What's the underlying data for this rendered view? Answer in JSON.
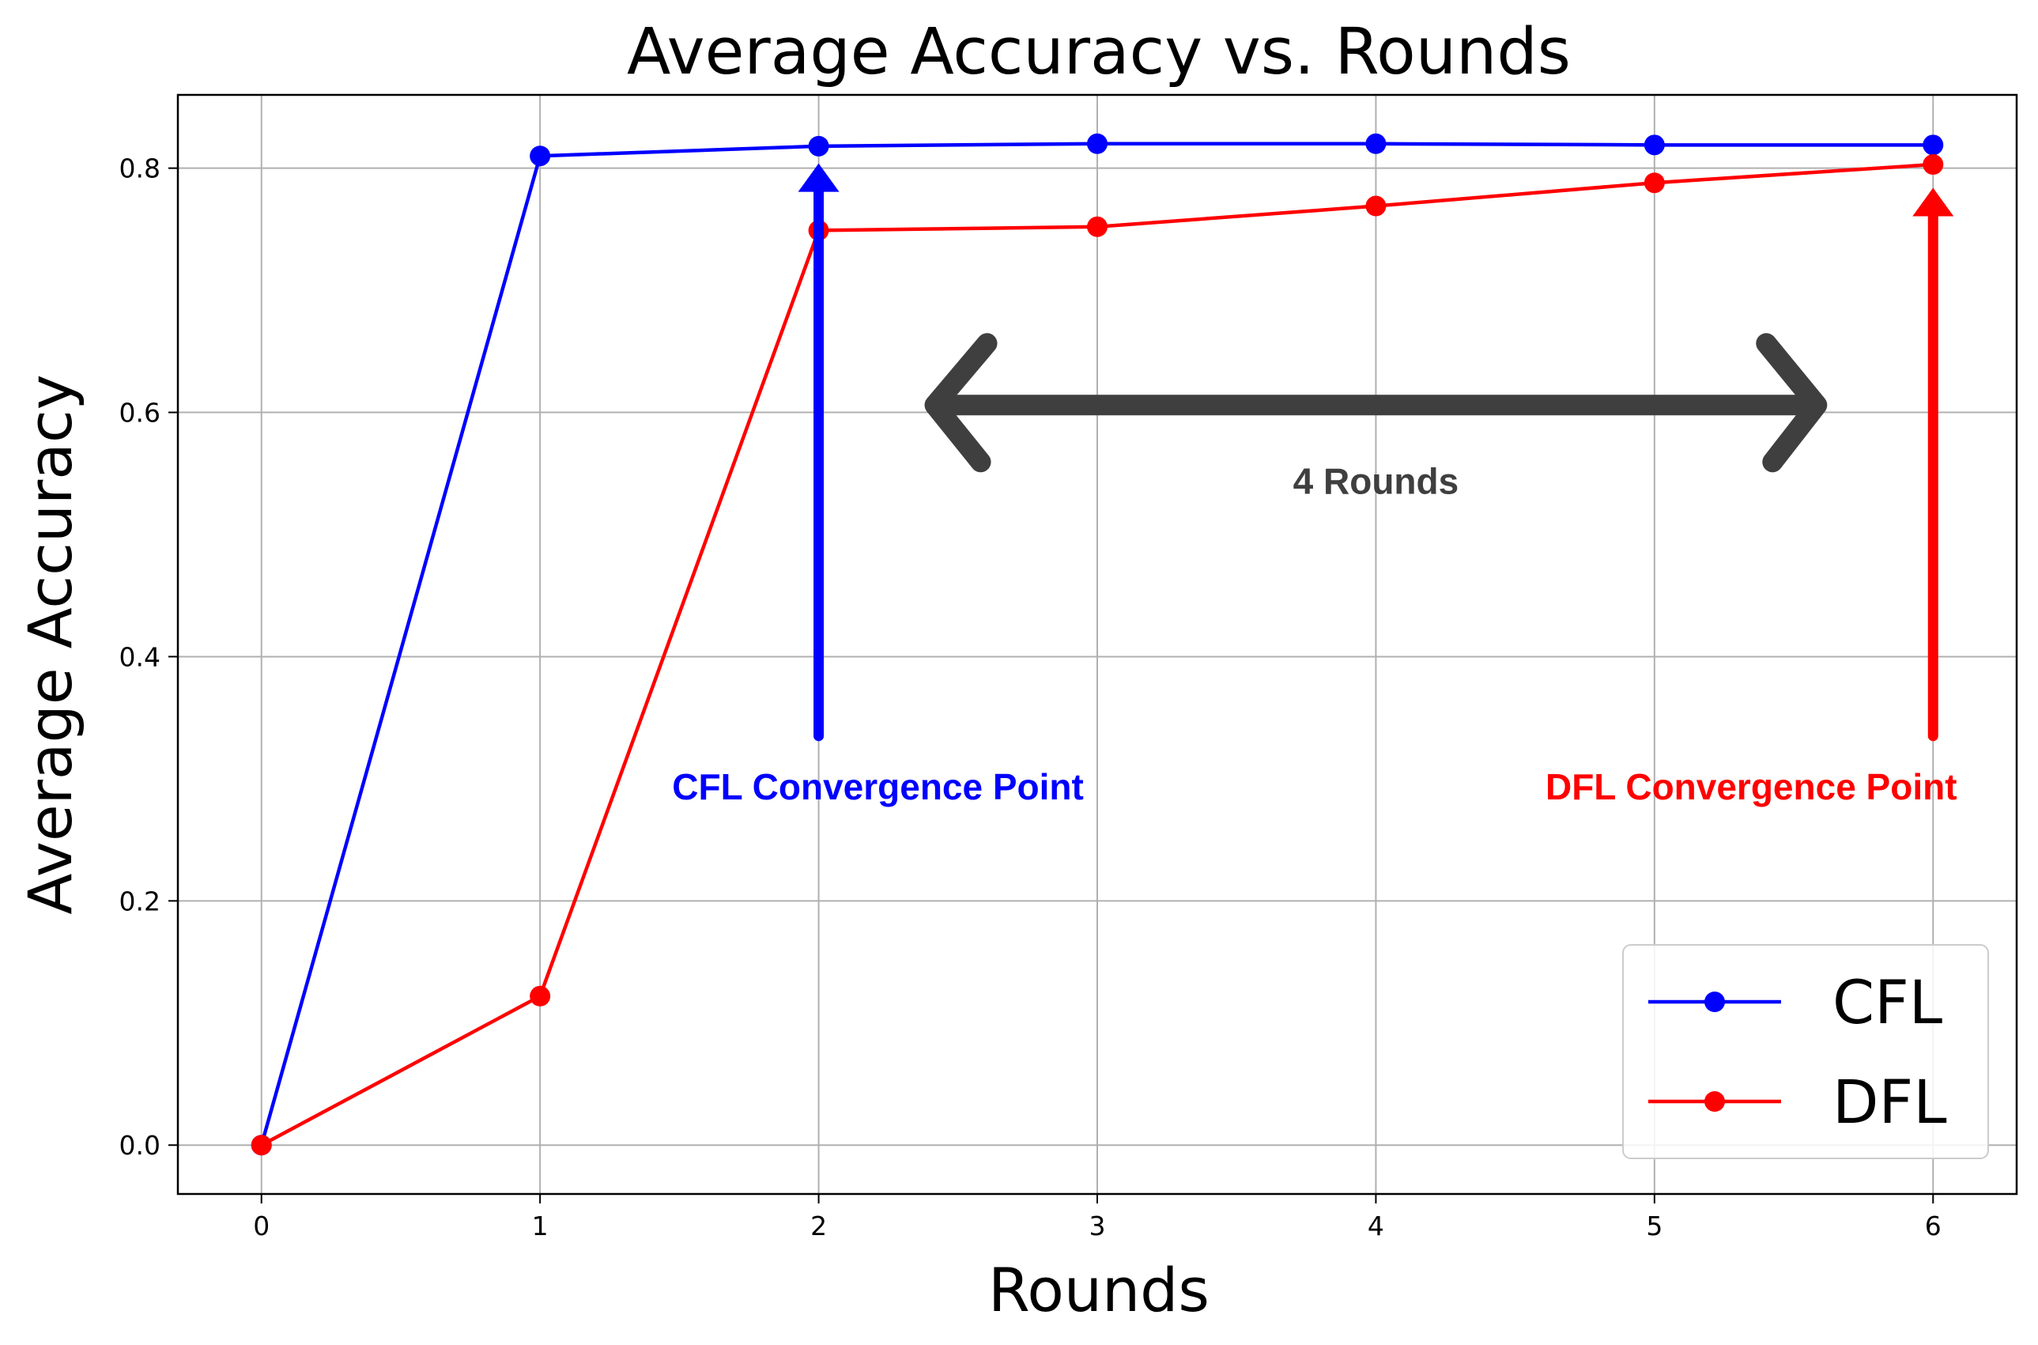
{
  "chart_data": {
    "type": "line",
    "title": "Average Accuracy vs. Rounds",
    "xlabel": "Rounds",
    "ylabel": "Average Accuracy",
    "x": [
      0,
      1,
      2,
      3,
      4,
      5,
      6
    ],
    "xlim": [
      -0.3,
      6.3
    ],
    "ylim": [
      -0.04,
      0.86
    ],
    "xticks": [
      "0",
      "1",
      "2",
      "3",
      "4",
      "5",
      "6"
    ],
    "yticks": [
      "0.0",
      "0.2",
      "0.4",
      "0.6",
      "0.8"
    ],
    "grid": true,
    "legend_position": "lower-right",
    "series": [
      {
        "name": "CFL",
        "color": "#0000ff",
        "values": [
          0.0,
          0.81,
          0.818,
          0.82,
          0.82,
          0.819,
          0.819
        ]
      },
      {
        "name": "DFL",
        "color": "#ff0000",
        "values": [
          0.0,
          0.122,
          0.749,
          0.752,
          0.769,
          0.788,
          0.803
        ]
      }
    ],
    "annotations": [
      {
        "text": "CFL Convergence Point",
        "color": "#0000ff",
        "x": 2,
        "y_from": 0.335,
        "y_to": 0.8
      },
      {
        "text": "DFL Convergence Point",
        "color": "#ff0000",
        "x": 6,
        "y_from": 0.335,
        "y_to": 0.78
      },
      {
        "text": "4 Rounds",
        "color": "#3f3f3f",
        "x_from": 2.4,
        "x_to": 5.6,
        "y": 0.606
      }
    ]
  }
}
